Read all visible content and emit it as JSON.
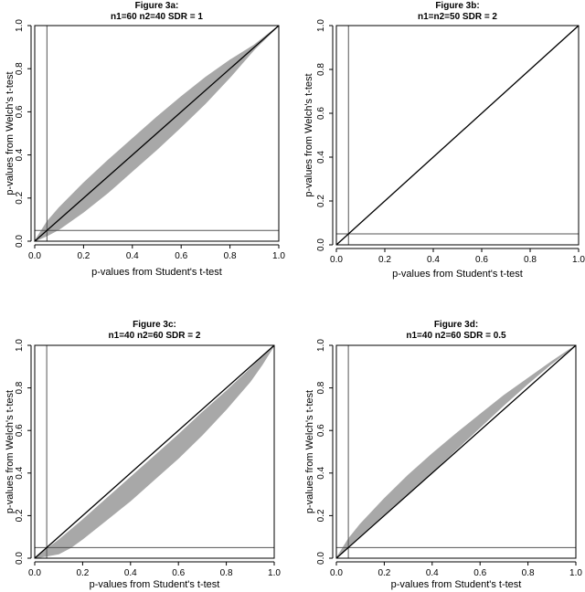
{
  "chart_data": [
    {
      "type": "scatter",
      "title": "Figure 3a:",
      "subtitle": "n1=60   n2=40   SDR = 1",
      "xlabel": "p-values from Student's t-test",
      "ylabel": "p-values from Welch's t-test",
      "xlim": [
        0,
        1
      ],
      "ylim": [
        0,
        1
      ],
      "xticks": [
        "0.0",
        "0.2",
        "0.4",
        "0.6",
        "0.8",
        "1.0"
      ],
      "yticks": [
        "0.0",
        "0.2",
        "0.4",
        "0.6",
        "0.8",
        "1.0"
      ],
      "reference_lines": {
        "identity": true,
        "vertical_x": 0.05,
        "horizontal_y": 0.05
      },
      "series": [
        {
          "name": "upper envelope",
          "x": [
            0,
            0.05,
            0.1,
            0.2,
            0.3,
            0.4,
            0.5,
            0.6,
            0.7,
            0.8,
            0.85,
            0.9,
            1.0
          ],
          "y": [
            0,
            0.09,
            0.155,
            0.27,
            0.375,
            0.475,
            0.575,
            0.67,
            0.76,
            0.84,
            0.875,
            0.91,
            1.0
          ]
        },
        {
          "name": "lower envelope",
          "x": [
            0,
            0.05,
            0.1,
            0.2,
            0.3,
            0.4,
            0.5,
            0.6,
            0.7,
            0.8,
            0.85,
            0.9,
            1.0
          ],
          "y": [
            0,
            0.025,
            0.055,
            0.135,
            0.225,
            0.325,
            0.425,
            0.53,
            0.64,
            0.76,
            0.825,
            0.89,
            1.0
          ]
        }
      ]
    },
    {
      "type": "scatter",
      "title": "Figure 3b:",
      "subtitle": "n1=n2=50   SDR = 2",
      "xlabel": "p-values from Student's t-test",
      "ylabel": "p-values from Welch's t-test",
      "xlim": [
        0,
        1
      ],
      "ylim": [
        0,
        1
      ],
      "xticks": [
        "0.0",
        "0.2",
        "0.4",
        "0.6",
        "0.8",
        "1.0"
      ],
      "yticks": [
        "0.0",
        "0.2",
        "0.4",
        "0.6",
        "0.8",
        "1.0"
      ],
      "reference_lines": {
        "identity": true,
        "vertical_x": 0.05,
        "horizontal_y": 0.05
      },
      "series": [
        {
          "name": "upper envelope",
          "x": [
            0,
            1
          ],
          "y": [
            0,
            1
          ]
        },
        {
          "name": "lower envelope",
          "x": [
            0,
            1
          ],
          "y": [
            0,
            1
          ]
        }
      ]
    },
    {
      "type": "scatter",
      "title": "Figure 3c:",
      "subtitle": "n1=40   n2=60   SDR = 2",
      "xlabel": "p-values from Student's t-test",
      "ylabel": "p-values from Welch's t-test",
      "xlim": [
        0,
        1
      ],
      "ylim": [
        0,
        1
      ],
      "xticks": [
        "0.0",
        "0.2",
        "0.4",
        "0.6",
        "0.8",
        "1.0"
      ],
      "yticks": [
        "0.0",
        "0.2",
        "0.4",
        "0.6",
        "0.8",
        "1.0"
      ],
      "reference_lines": {
        "identity": true,
        "vertical_x": 0.05,
        "horizontal_y": 0.05
      },
      "series": [
        {
          "name": "upper envelope",
          "x": [
            0,
            0.1,
            0.2,
            0.3,
            0.4,
            0.5,
            0.6,
            0.7,
            0.8,
            0.9,
            0.95,
            1.0
          ],
          "y": [
            0,
            0.085,
            0.18,
            0.28,
            0.38,
            0.48,
            0.58,
            0.685,
            0.785,
            0.89,
            0.945,
            1.0
          ]
        },
        {
          "name": "lower envelope",
          "x": [
            0,
            0.1,
            0.15,
            0.2,
            0.3,
            0.4,
            0.5,
            0.6,
            0.7,
            0.8,
            0.9,
            0.95,
            1.0
          ],
          "y": [
            0,
            0.02,
            0.05,
            0.09,
            0.18,
            0.27,
            0.37,
            0.47,
            0.58,
            0.7,
            0.83,
            0.91,
            1.0
          ]
        }
      ]
    },
    {
      "type": "scatter",
      "title": "Figure 3d:",
      "subtitle": "n1=40   n2=60   SDR = 0.5",
      "xlabel": "p-values from Student's t-test",
      "ylabel": "p-values from Welch's t-test",
      "xlim": [
        0,
        1
      ],
      "ylim": [
        0,
        1
      ],
      "xticks": [
        "0.0",
        "0.2",
        "0.4",
        "0.6",
        "0.8",
        "1.0"
      ],
      "yticks": [
        "0.0",
        "0.2",
        "0.4",
        "0.6",
        "0.8",
        "1.0"
      ],
      "reference_lines": {
        "identity": true,
        "vertical_x": 0.05,
        "horizontal_y": 0.05
      },
      "series": [
        {
          "name": "upper envelope",
          "x": [
            0,
            0.05,
            0.1,
            0.2,
            0.3,
            0.4,
            0.5,
            0.6,
            0.7,
            0.8,
            0.9,
            1.0
          ],
          "y": [
            0,
            0.09,
            0.16,
            0.28,
            0.39,
            0.49,
            0.585,
            0.675,
            0.765,
            0.845,
            0.925,
            1.0
          ]
        },
        {
          "name": "lower envelope",
          "x": [
            0,
            0.05,
            0.1,
            0.2,
            0.3,
            0.4,
            0.5,
            0.6,
            0.7,
            0.8,
            0.9,
            1.0
          ],
          "y": [
            0,
            0.05,
            0.1,
            0.2,
            0.3,
            0.405,
            0.51,
            0.615,
            0.72,
            0.82,
            0.915,
            1.0
          ]
        }
      ]
    }
  ],
  "colors": {
    "band": "#a8a8a8",
    "axis": "#000000",
    "ref_line": "#555555",
    "identity": "#000000"
  }
}
